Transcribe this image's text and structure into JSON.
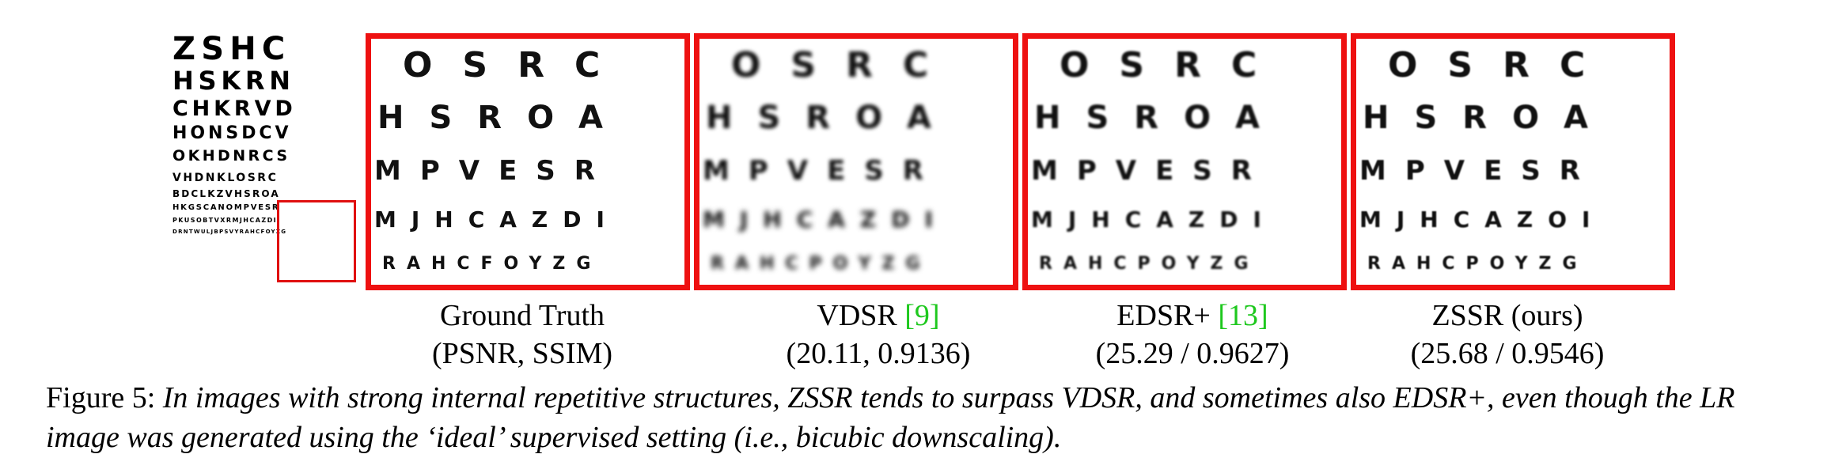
{
  "full_chart": {
    "rows": [
      "ZSHC",
      "HSKRN",
      "CHKRVD",
      "HONSDCV",
      "OKHDNRCS",
      "VHDNKLOSRC",
      "BDCLKZVHSROA",
      "HKGSCANOMPVESR",
      "PKUSOBTVXRMJHCAZDI",
      "DRNTWULJBPSVYRAHCFOYZG"
    ]
  },
  "panels": [
    {
      "name": "ground-truth",
      "rows": [
        "OSRC",
        "HSROA",
        "MPVESR",
        "MJHCAZDI",
        "RAHCFOYZG"
      ],
      "caption_line1": "Ground Truth",
      "caption_line2": "(PSNR, SSIM)"
    },
    {
      "name": "vdsr",
      "rows": [
        "OSRC",
        "HSROA",
        "MPVESR",
        "MJHCAZDI",
        "RAHCPOYZG"
      ],
      "caption_method": "VDSR ",
      "caption_ref": "[9]",
      "caption_line2": "(20.11, 0.9136)"
    },
    {
      "name": "edsr-plus",
      "rows": [
        "OSRC",
        "HSROA",
        "MPVESR",
        "MJHCAZDI",
        "RAHCPOYZG"
      ],
      "caption_method": "EDSR+ ",
      "caption_ref": "[13]",
      "caption_line2": "(25.29 / 0.9627)"
    },
    {
      "name": "zssr",
      "rows": [
        "OSRC",
        "HSROA",
        "MPVESR",
        "MJHCAZOI",
        "RAHCPOYZG"
      ],
      "caption_line1": "ZSSR (ours)",
      "caption_line2": "(25.68 / 0.9546)"
    }
  ],
  "figure_caption": {
    "label": "Figure 5: ",
    "text": "In images with strong internal repetitive structures, ZSSR tends to surpass VDSR, and sometimes also EDSR+, even though the LR image was generated using the ‘ideal’ supervised setting (i.e., bicubic downscaling)."
  },
  "colors": {
    "frame": "#ee1111",
    "citation": "#1ec81e"
  }
}
